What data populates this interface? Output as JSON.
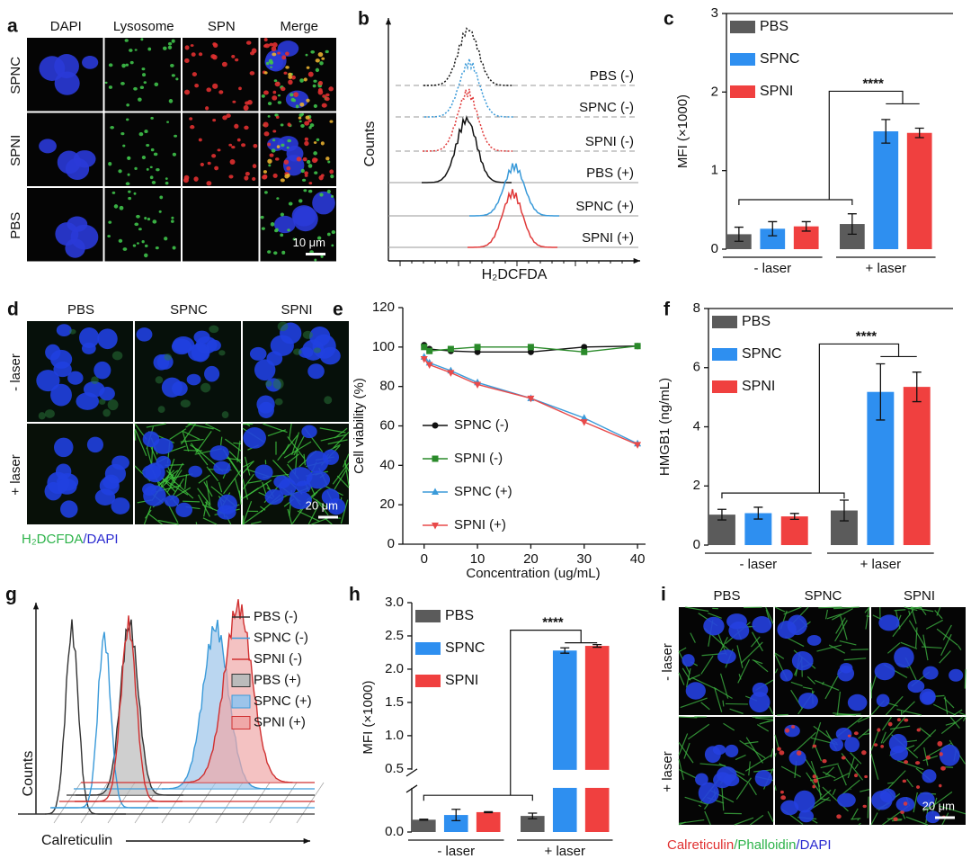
{
  "panels": [
    {
      "label": "a",
      "columns": [
        "DAPI",
        "Lysosome",
        "SPN",
        "Merge"
      ],
      "rows": [
        "SPNC",
        "SPNI",
        "PBS"
      ],
      "scale_bar": "10 μm"
    },
    {
      "label": "b",
      "y_label": "Counts",
      "x_label": "H₂DCFDA",
      "curves": [
        "PBS (-)",
        "SPNC (-)",
        "SPNI (-)",
        "PBS (+)",
        "SPNC (+)",
        "SPNI (+)"
      ]
    },
    {
      "label": "d",
      "columns": [
        "PBS",
        "SPNC",
        "SPNI"
      ],
      "rows": [
        "- laser",
        "+ laser"
      ],
      "scale_bar": "20 μm",
      "caption": [
        "H₂DCFDA",
        "/DAPI"
      ]
    },
    {
      "label": "g",
      "y_label": "Counts",
      "x_label": "Calreticulin",
      "curves": [
        "PBS (-)",
        "SPNC (-)",
        "SPNI (-)",
        "PBS (+)",
        "SPNC (+)",
        "SPNI (+)"
      ]
    },
    {
      "label": "i",
      "columns": [
        "PBS",
        "SPNC",
        "SPNI"
      ],
      "rows": [
        "- laser",
        "+ laser"
      ],
      "scale_bar": "20 μm",
      "caption": [
        "Calreticulin",
        "/Phalloidin",
        "/DAPI"
      ]
    }
  ],
  "chart_data": [
    {
      "panel": "c",
      "type": "bar",
      "y_label": "MFI (×1000)",
      "categories": [
        "- laser",
        "+ laser"
      ],
      "series": [
        {
          "name": "PBS",
          "color": "#5b5b5b",
          "values": [
            0.19,
            0.32
          ],
          "errors": [
            0.09,
            0.13
          ]
        },
        {
          "name": "SPNC",
          "color": "#2e8ff0",
          "values": [
            0.26,
            1.5
          ],
          "errors": [
            0.09,
            0.15
          ]
        },
        {
          "name": "SPNI",
          "color": "#f0403f",
          "values": [
            0.29,
            1.48
          ],
          "errors": [
            0.06,
            0.06
          ]
        }
      ],
      "ylim": [
        0,
        3
      ],
      "yticks": [
        0,
        1,
        2,
        3
      ],
      "annotation": "****"
    },
    {
      "panel": "e",
      "type": "line",
      "x_label": "Concentration (ug/mL)",
      "y_label": "Cell viability (%)",
      "x": [
        0,
        1,
        5,
        10,
        20,
        30,
        40
      ],
      "series": [
        {
          "name": "SPNC (-)",
          "color": "#111111",
          "marker": "circle",
          "values": [
            101,
            99,
            98,
            97.5,
            97.5,
            100,
            100.5
          ]
        },
        {
          "name": "SPNI (-)",
          "color": "#2a8a2a",
          "marker": "square",
          "values": [
            100,
            98,
            99,
            100,
            100,
            97.5,
            100.5
          ]
        },
        {
          "name": "SPNC (+)",
          "color": "#3a9ad9",
          "marker": "triangle-up",
          "values": [
            95,
            92,
            88,
            82,
            74,
            64,
            51
          ]
        },
        {
          "name": "SPNI (+)",
          "color": "#e84a4a",
          "marker": "triangle-down",
          "values": [
            94,
            91,
            87,
            81,
            74,
            62,
            50.5
          ]
        }
      ],
      "xlim": [
        -4,
        41.5
      ],
      "ylim": [
        0,
        120
      ],
      "xticks": [
        0,
        10,
        20,
        30,
        40
      ],
      "yticks": [
        0,
        20,
        40,
        60,
        80,
        100,
        120
      ]
    },
    {
      "panel": "f",
      "type": "bar",
      "y_label": "HMGB1 (ng/mL)",
      "categories": [
        "- laser",
        "+ laser"
      ],
      "series": [
        {
          "name": "PBS",
          "color": "#5b5b5b",
          "values": [
            1.03,
            1.17
          ],
          "errors": [
            0.18,
            0.35
          ]
        },
        {
          "name": "SPNC",
          "color": "#2e8ff0",
          "values": [
            1.08,
            5.18
          ],
          "errors": [
            0.2,
            0.95
          ]
        },
        {
          "name": "SPNI",
          "color": "#f0403f",
          "values": [
            0.97,
            5.35
          ],
          "errors": [
            0.1,
            0.5
          ]
        }
      ],
      "ylim": [
        0,
        8
      ],
      "yticks": [
        0,
        2,
        4,
        6,
        8
      ],
      "annotation": "****"
    },
    {
      "panel": "h",
      "type": "bar",
      "y_label": "MFI (×1000)",
      "categories": [
        "- laser",
        "+ laser"
      ],
      "series": [
        {
          "name": "PBS",
          "color": "#5b5b5b",
          "values": [
            0.13,
            0.17
          ],
          "errors": [
            0.005,
            0.03
          ]
        },
        {
          "name": "SPNC",
          "color": "#2e8ff0",
          "values": [
            0.18,
            2.28
          ],
          "errors": [
            0.06,
            0.04
          ]
        },
        {
          "name": "SPNI",
          "color": "#f0403f",
          "values": [
            0.21,
            2.35
          ],
          "errors": [
            0.005,
            0.02
          ]
        }
      ],
      "ylim": [
        0,
        3
      ],
      "ybreak": [
        0.4,
        0.5
      ],
      "yticks": [
        {
          "value": 0,
          "label": "0.0"
        },
        0.5,
        {
          "value": 1,
          "label": "1.0"
        },
        1.5,
        {
          "value": 2,
          "label": "2.0"
        },
        2.5,
        {
          "value": 3,
          "label": "3.0"
        }
      ],
      "annotation": "****"
    }
  ]
}
